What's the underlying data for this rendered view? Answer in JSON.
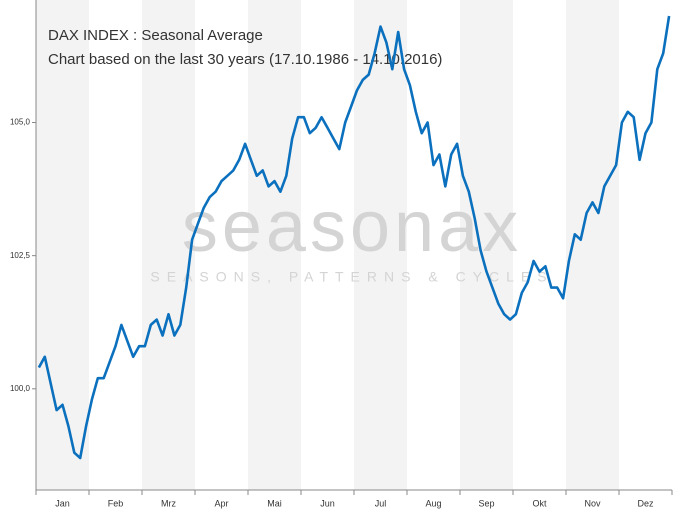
{
  "chart_data": {
    "type": "line",
    "title": "DAX INDEX : Seasonal Average",
    "subtitle": "Chart based on the last 30 years (17.10.1986 - 14.10.2016)",
    "watermark": "seasonax",
    "watermark_tagline": "SEASONS, PATTERNS & CYCLES",
    "categories": [
      null,
      null,
      null,
      null,
      "Jan",
      null,
      null,
      null,
      null,
      null,
      null,
      null,
      null,
      "Feb",
      null,
      null,
      null,
      null,
      null,
      null,
      null,
      null,
      "Mrz",
      null,
      null,
      null,
      null,
      null,
      null,
      null,
      null,
      "Apr",
      null,
      null,
      null,
      null,
      null,
      null,
      null,
      null,
      "Mai",
      null,
      null,
      null,
      null,
      null,
      null,
      null,
      null,
      "Jun",
      null,
      null,
      null,
      null,
      null,
      null,
      null,
      null,
      "Jul",
      null,
      null,
      null,
      null,
      null,
      null,
      null,
      null,
      "Aug",
      null,
      null,
      null,
      null,
      null,
      null,
      null,
      null,
      "Sep",
      null,
      null,
      null,
      null,
      null,
      null,
      null,
      null,
      "Okt",
      null,
      null,
      null,
      null,
      null,
      null,
      null,
      null,
      "Nov",
      null,
      null,
      null,
      null,
      null,
      null,
      null,
      null,
      "Dez",
      null,
      null,
      null,
      null
    ],
    "series": [
      {
        "name": "DAX INDEX",
        "color": "#0b70bd",
        "values": [
          100.4,
          100.6,
          100.1,
          99.6,
          99.7,
          99.3,
          98.8,
          98.7,
          99.3,
          99.8,
          100.2,
          100.2,
          100.5,
          100.8,
          101.2,
          100.9,
          100.6,
          100.8,
          100.8,
          101.2,
          101.3,
          101.0,
          101.4,
          101.0,
          101.2,
          101.9,
          102.8,
          103.1,
          103.4,
          103.6,
          103.7,
          103.9,
          104.0,
          104.1,
          104.3,
          104.6,
          104.3,
          104.0,
          104.1,
          103.8,
          103.9,
          103.7,
          104.0,
          104.7,
          105.1,
          105.1,
          104.8,
          104.9,
          105.1,
          104.9,
          104.7,
          104.5,
          105.0,
          105.3,
          105.6,
          105.8,
          105.9,
          106.3,
          106.8,
          106.5,
          106.0,
          106.7,
          106.0,
          105.7,
          105.2,
          104.8,
          105.0,
          104.2,
          104.4,
          103.8,
          104.4,
          104.6,
          104.0,
          103.7,
          103.2,
          102.6,
          102.2,
          101.9,
          101.6,
          101.4,
          101.3,
          101.4,
          101.8,
          102.0,
          102.4,
          102.2,
          102.3,
          101.9,
          101.9,
          101.7,
          102.4,
          102.9,
          102.8,
          103.3,
          103.5,
          103.3,
          103.8,
          104.0,
          104.2,
          105.0,
          105.2,
          105.1,
          104.3,
          104.8,
          105.0,
          106.0,
          106.3,
          107.0
        ]
      }
    ],
    "ylim": [
      98.1,
      107.3
    ],
    "yticks": [
      {
        "value": 100,
        "label": "100,0"
      },
      {
        "value": 102.5,
        "label": "102,5"
      },
      {
        "value": 105,
        "label": "105,0"
      }
    ],
    "grid": false
  }
}
